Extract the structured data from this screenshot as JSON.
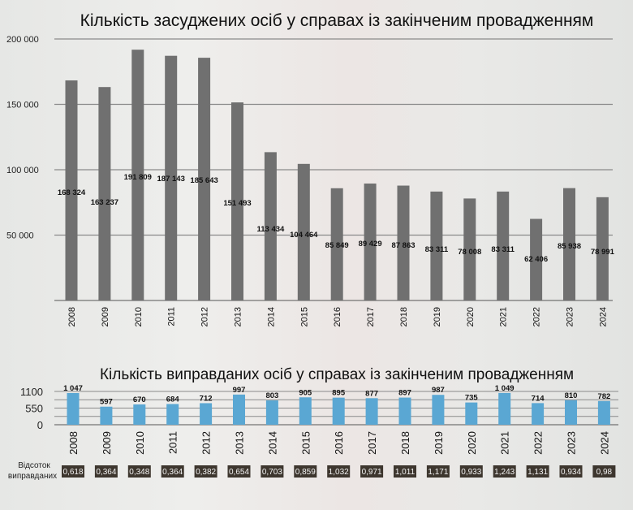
{
  "chart_data": [
    {
      "type": "bar",
      "title": "Кількість засуджених осіб у справах із закінченим провадженням",
      "categories": [
        "2008",
        "2009",
        "2010",
        "2011",
        "2012",
        "2013",
        "2014",
        "2015",
        "2016",
        "2017",
        "2018",
        "2019",
        "2020",
        "2021",
        "2022",
        "2023",
        "2024"
      ],
      "values": [
        168324,
        163237,
        191809,
        187143,
        185643,
        151493,
        113434,
        104464,
        85849,
        89429,
        87863,
        83311,
        78008,
        83311,
        62406,
        85938,
        78991
      ],
      "data_labels": [
        "168 324",
        "163 237",
        "191 809",
        "187 143",
        "185 643",
        "151 493",
        "113 434",
        "104 464",
        "85 849",
        "89 429",
        "87 863",
        "83 311",
        "78 008",
        "83 311",
        "62 406",
        "85 938",
        "78 991"
      ],
      "yticks": [
        "50 000",
        "100 000",
        "150 000",
        "200 000"
      ],
      "ytick_values": [
        50000,
        100000,
        150000,
        200000
      ],
      "ylim": [
        0,
        200000
      ],
      "grid": true,
      "color": "#707070"
    },
    {
      "type": "bar",
      "title": "Кількість виправданих осіб у справах із закінченим провадженням",
      "categories": [
        "2008",
        "2009",
        "2010",
        "2011",
        "2012",
        "2013",
        "2014",
        "2015",
        "2016",
        "2017",
        "2018",
        "2019",
        "2020",
        "2021",
        "2022",
        "2023",
        "2024"
      ],
      "values": [
        1047,
        597,
        670,
        684,
        712,
        997,
        803,
        905,
        895,
        877,
        897,
        987,
        735,
        1049,
        714,
        810,
        782
      ],
      "data_labels": [
        "1 047",
        "597",
        "670",
        "684",
        "712",
        "997",
        "803",
        "905",
        "895",
        "877",
        "897",
        "987",
        "735",
        "1 049",
        "714",
        "810",
        "782"
      ],
      "yticks": [
        "0",
        "550",
        "1100"
      ],
      "ytick_values": [
        0,
        550,
        1100
      ],
      "ylim": [
        0,
        1100
      ],
      "grid": true,
      "color": "#5aa7d3",
      "percent_label": [
        "Відсоток",
        "виправданих"
      ],
      "percent_values": [
        "0,618",
        "0,364",
        "0,348",
        "0,364",
        "0,382",
        "0,654",
        "0,703",
        "0,859",
        "1,032",
        "0,971",
        "1,011",
        "1,171",
        "0,933",
        "1,243",
        "1,131",
        "0,934",
        "0,98"
      ]
    }
  ]
}
